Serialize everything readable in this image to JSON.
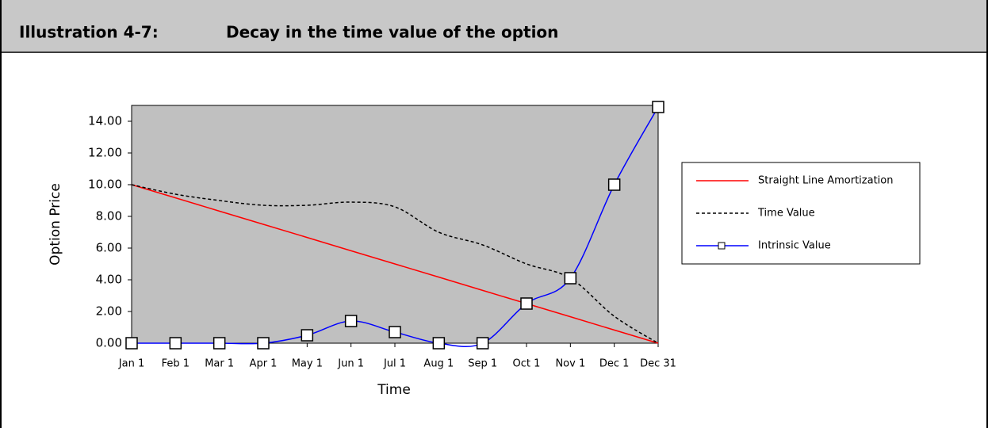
{
  "chart_data": {
    "type": "line",
    "label": "Illustration 4-7:",
    "title": "Decay in the time value of the option",
    "x_label": "Time",
    "y_label": "Option Price",
    "categories": [
      "Jan 1",
      "Feb 1",
      "Mar 1",
      "Apr 1",
      "May 1",
      "Jun 1",
      "Jul 1",
      "Aug 1",
      "Sep 1",
      "Oct 1",
      "Nov 1",
      "Dec 1",
      "Dec 31"
    ],
    "series": [
      {
        "name": "Straight Line Amortization",
        "color": "#ff0000",
        "dash": false,
        "marker": false,
        "smooth": false,
        "values": [
          10,
          9.17,
          8.33,
          7.5,
          6.67,
          5.83,
          5,
          4.17,
          3.33,
          2.5,
          1.67,
          0.83,
          0
        ]
      },
      {
        "name": "Time Value",
        "color": "#000000",
        "dash": true,
        "marker": false,
        "smooth": true,
        "values": [
          10,
          9.4,
          9.0,
          8.7,
          8.7,
          8.9,
          8.6,
          7.0,
          6.2,
          5.0,
          4.1,
          1.7,
          0
        ]
      },
      {
        "name": "Intrinsic Value",
        "color": "#0000ff",
        "dash": false,
        "marker": true,
        "smooth": true,
        "values": [
          0,
          0,
          0,
          0,
          0.5,
          1.4,
          0.7,
          0,
          0,
          2.5,
          4.1,
          10,
          14.9
        ]
      }
    ],
    "ylim": [
      0,
      15
    ],
    "yticks": [
      {
        "value": 0,
        "label": "0.00"
      },
      {
        "value": 2,
        "label": "2.00"
      },
      {
        "value": 4,
        "label": "4.00"
      },
      {
        "value": 6,
        "label": "6.00"
      },
      {
        "value": 8,
        "label": "8.00"
      },
      {
        "value": 10,
        "label": "10.00"
      },
      {
        "value": 12,
        "label": "12.00"
      },
      {
        "value": 14,
        "label": "14.00"
      }
    ],
    "legend": "right",
    "plot_background": "#c0c0c0"
  }
}
